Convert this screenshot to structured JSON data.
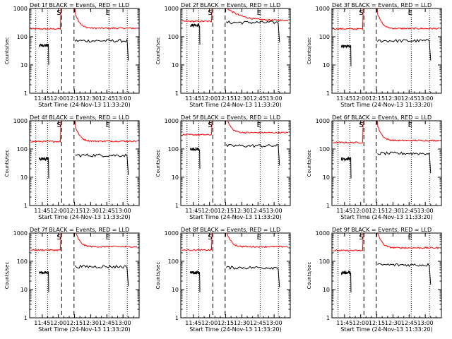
{
  "chart_data": {
    "type": "line",
    "grid": false,
    "xlabel": "Start Time (24-Nov-13 11:33:20)",
    "ylabel": "Counts/sec",
    "x_tick_labels": [
      "11:45",
      "12:00",
      "12:15",
      "12:30",
      "12:45",
      "13:00"
    ],
    "x_tick_minutes": [
      705,
      720,
      735,
      750,
      765,
      780
    ],
    "xlim_minutes": [
      693.3,
      795
    ],
    "y_scale": "log",
    "ylim": [
      1,
      1000
    ],
    "y_tick_labels": [
      "1",
      "10",
      "100",
      "1000"
    ],
    "y_tick_values": [
      1,
      10,
      100,
      1000
    ],
    "marker_labels": {
      "S": "S",
      "E": "E"
    },
    "series_colors": {
      "events": "#000000",
      "lld": "#ff0000"
    },
    "panels": [
      {
        "title": "Det 1f BLACK = Events, RED = LLD",
        "lld": {
          "before": 190,
          "after": 200
        },
        "events": {
          "before": 50,
          "after": 72
        },
        "lines": {
          "left_dotted": 699,
          "dotted2": 710,
          "dashed1": 723,
          "dashed2": 734.5,
          "dotted3": 767,
          "dotted4": 784,
          "S_marker": 720.5,
          "E_marker": 766
        }
      },
      {
        "title": "Det 2f BLACK = Events, RED = LLD",
        "lld": {
          "before": 350,
          "after": 380
        },
        "events": {
          "before": 260,
          "after": 320
        },
        "lines": {
          "left_dotted": 699,
          "dotted2": 710,
          "dashed1": 723,
          "dashed2": 734.5,
          "dotted3": 767,
          "dotted4": 784,
          "S_marker": 720.5,
          "E_marker": 766
        }
      },
      {
        "title": "Det 3f BLACK = Events, RED = LLD",
        "lld": {
          "before": 190,
          "after": 195
        },
        "events": {
          "before": 45,
          "after": 72
        },
        "lines": {
          "left_dotted": 699,
          "dotted2": 710,
          "dashed1": 723,
          "dashed2": 734.5,
          "dotted3": 767,
          "dotted4": 784,
          "S_marker": 720.5,
          "E_marker": 766
        }
      },
      {
        "title": "Det 4f BLACK = Events, RED = LLD",
        "lld": {
          "before": 185,
          "after": 190
        },
        "events": {
          "before": 45,
          "after": 60
        },
        "lines": {
          "left_dotted": 699,
          "dotted2": 710,
          "dashed1": 723,
          "dashed2": 734.5,
          "dotted3": 767,
          "dotted4": 784,
          "S_marker": 720.5,
          "E_marker": 766
        }
      },
      {
        "title": "Det 5f BLACK = Events, RED = LLD",
        "lld": {
          "before": 320,
          "after": 380
        },
        "events": {
          "before": 100,
          "after": 130
        },
        "lines": {
          "left_dotted": 699,
          "dotted2": 710,
          "dashed1": 723,
          "dashed2": 734.5,
          "dotted3": 767,
          "dotted4": 784,
          "S_marker": 720.5,
          "E_marker": 766
        }
      },
      {
        "title": "Det 6f BLACK = Events, RED = LLD",
        "lld": {
          "before": 170,
          "after": 200
        },
        "events": {
          "before": 45,
          "after": 70
        },
        "lines": {
          "left_dotted": 699,
          "dotted2": 710,
          "dashed1": 723,
          "dashed2": 734.5,
          "dotted3": 767,
          "dotted4": 784,
          "S_marker": 720.5,
          "E_marker": 766
        }
      },
      {
        "title": "Det 7f BLACK = Events, RED = LLD",
        "lld": {
          "before": 250,
          "after": 330
        },
        "events": {
          "before": 40,
          "after": 65
        },
        "lines": {
          "left_dotted": 699,
          "dotted2": 710,
          "dashed1": 723,
          "dashed2": 734.5,
          "dotted3": 767,
          "dotted4": 784,
          "S_marker": 720.5,
          "E_marker": 766
        }
      },
      {
        "title": "Det 8f BLACK = Events, RED = LLD",
        "lld": {
          "before": 250,
          "after": 330
        },
        "events": {
          "before": 40,
          "after": 60
        },
        "lines": {
          "left_dotted": 699,
          "dotted2": 710,
          "dashed1": 723,
          "dashed2": 734.5,
          "dotted3": 767,
          "dotted4": 784,
          "S_marker": 720.5,
          "E_marker": 766
        }
      },
      {
        "title": "Det 9f BLACK = Events, RED = LLD",
        "lld": {
          "before": 240,
          "after": 300
        },
        "events": {
          "before": 40,
          "after": 75
        },
        "lines": {
          "left_dotted": 699,
          "dotted2": 710,
          "dashed1": 723,
          "dashed2": 734.5,
          "dotted3": 767,
          "dotted4": 784,
          "S_marker": 720.5,
          "E_marker": 766
        }
      }
    ]
  }
}
